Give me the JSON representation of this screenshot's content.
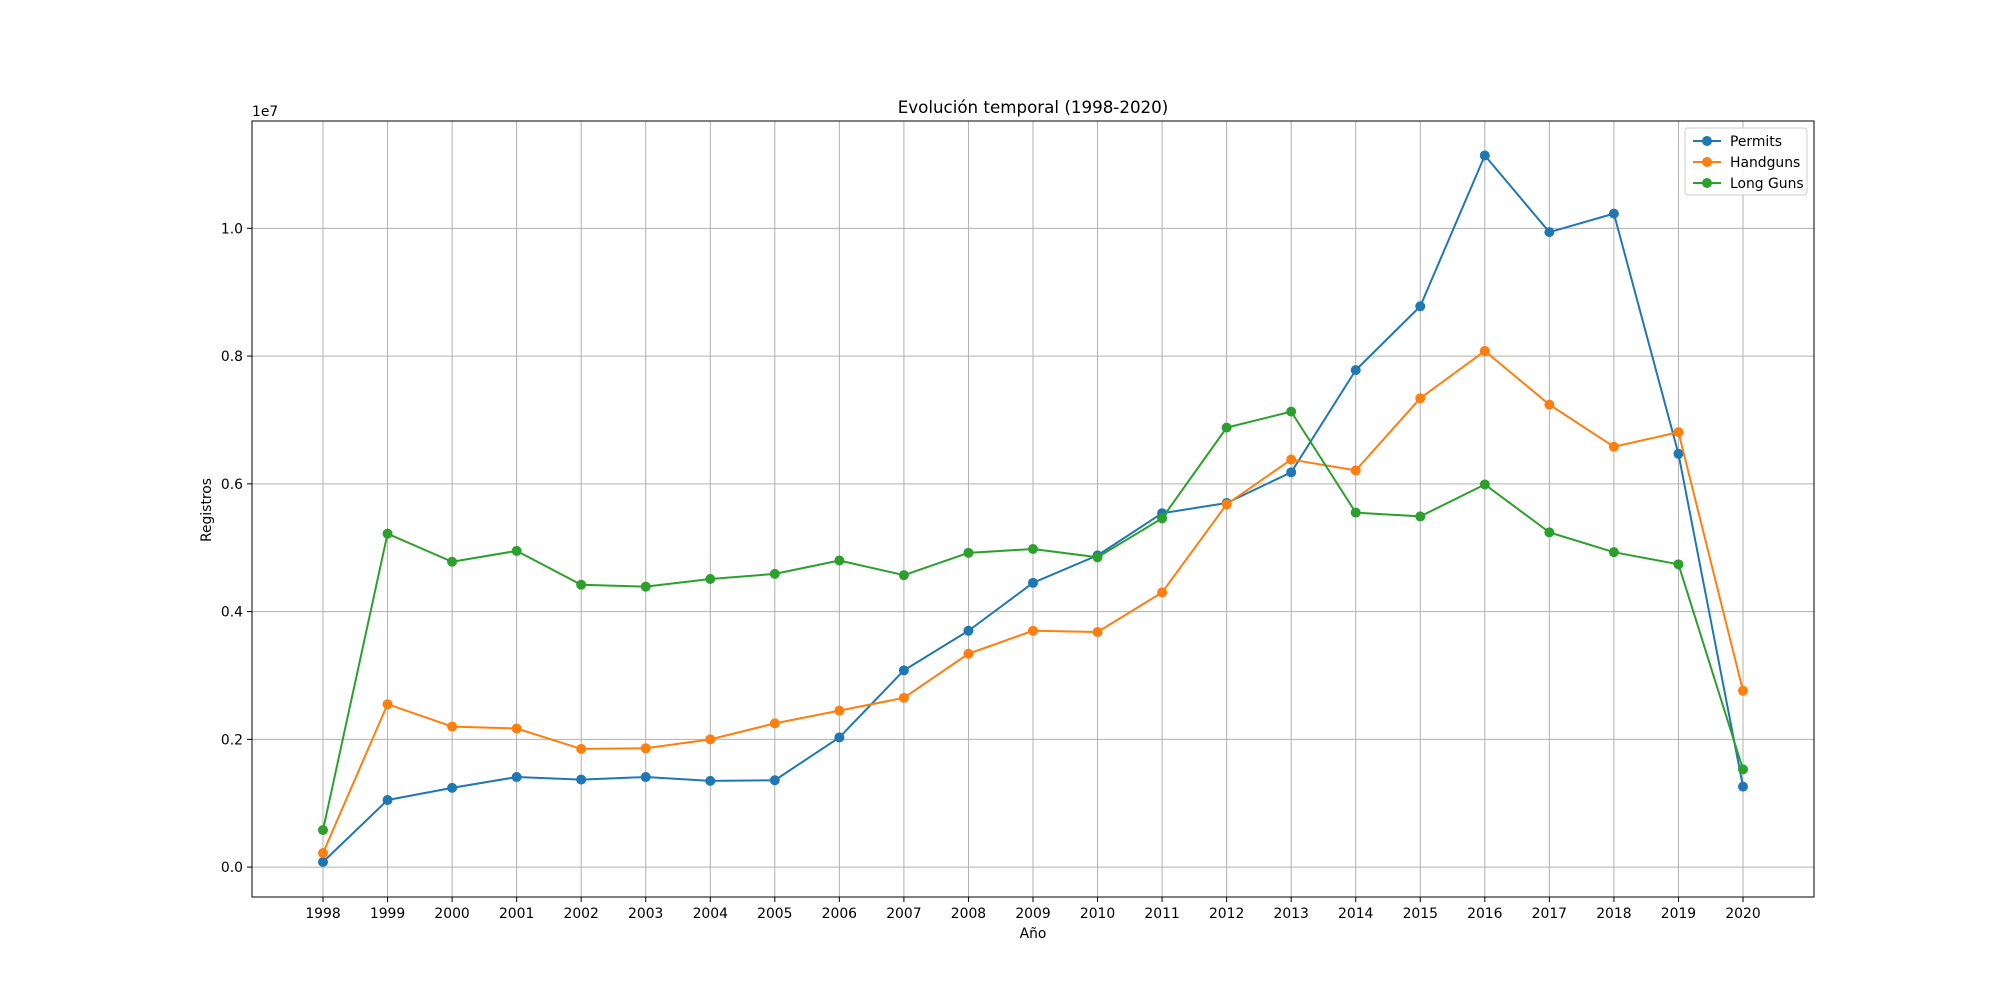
{
  "chart_data": {
    "type": "line",
    "title": "Evolución temporal (1998-2020)",
    "xlabel": "Año",
    "ylabel": "Registros",
    "y_offset_label": "1e7",
    "y_scale": 10000000,
    "x": [
      1998,
      1999,
      2000,
      2001,
      2002,
      2003,
      2004,
      2005,
      2006,
      2007,
      2008,
      2009,
      2010,
      2011,
      2012,
      2013,
      2014,
      2015,
      2016,
      2017,
      2018,
      2019,
      2020
    ],
    "x_tick_labels": [
      "1998",
      "1999",
      "2000",
      "2001",
      "2002",
      "2003",
      "2004",
      "2005",
      "2006",
      "2007",
      "2008",
      "2009",
      "2010",
      "2011",
      "2012",
      "2013",
      "2014",
      "2015",
      "2016",
      "2017",
      "2018",
      "2019",
      "2020"
    ],
    "y_ticks": [
      0,
      2000000,
      4000000,
      6000000,
      8000000,
      10000000
    ],
    "y_tick_labels": [
      "0.0",
      "0.2",
      "0.4",
      "0.6",
      "0.8",
      "1.0"
    ],
    "xlim": [
      1996.9,
      2021.1
    ],
    "ylim": [
      -468000,
      11680000
    ],
    "grid": true,
    "legend_position": "top-right",
    "series": [
      {
        "name": "Permits",
        "color": "#1f77b4",
        "values": [
          80000,
          1050000,
          1240000,
          1410000,
          1370000,
          1410000,
          1350000,
          1360000,
          2030000,
          3080000,
          3700000,
          4450000,
          4880000,
          5540000,
          5700000,
          6180000,
          7780000,
          8780000,
          11140000,
          9940000,
          10230000,
          6470000,
          1260000
        ]
      },
      {
        "name": "Handguns",
        "color": "#ff7f0e",
        "values": [
          220000,
          2550000,
          2200000,
          2170000,
          1850000,
          1860000,
          2000000,
          2250000,
          2450000,
          2650000,
          3340000,
          3700000,
          3680000,
          4300000,
          5680000,
          6380000,
          6210000,
          7340000,
          8080000,
          7240000,
          6580000,
          6810000,
          2760000
        ]
      },
      {
        "name": "Long Guns",
        "color": "#2ca02c",
        "values": [
          580000,
          5220000,
          4780000,
          4950000,
          4420000,
          4390000,
          4510000,
          4590000,
          4800000,
          4570000,
          4920000,
          4980000,
          4850000,
          5460000,
          6880000,
          7130000,
          5550000,
          5490000,
          5990000,
          5240000,
          4930000,
          4740000,
          1530000
        ]
      }
    ]
  }
}
